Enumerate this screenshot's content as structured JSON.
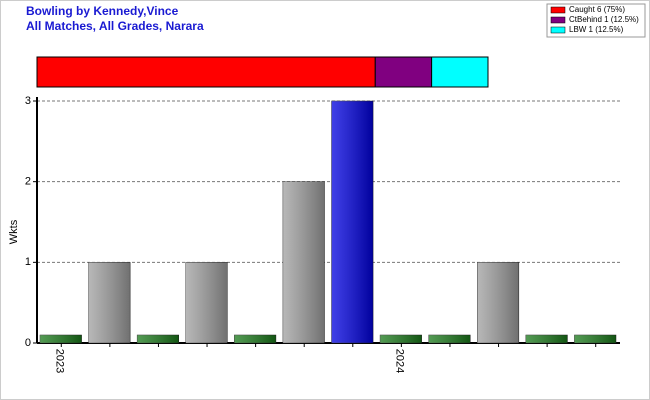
{
  "chart_data": [
    {
      "type": "stacked_bar",
      "title": "Bowling by Kennedy,Vince",
      "subtitle": "All Matches, All Grades, Narara",
      "series": [
        {
          "name": "Caught 6 (75%)",
          "color": "#ff0000",
          "values": [
            6
          ]
        },
        {
          "name": "CtBehind 1 (12.5%)",
          "color": "#800080",
          "values": [
            1
          ]
        },
        {
          "name": "LBW 1 (12.5%)",
          "color": "#00ffff",
          "values": [
            1
          ]
        }
      ]
    },
    {
      "type": "bar",
      "y_label": "Wkts",
      "categories": [
        "2023",
        null,
        null,
        null,
        null,
        null,
        null,
        "2024",
        null,
        null,
        null,
        null
      ],
      "values": [
        0,
        1,
        0,
        1,
        0,
        2,
        3,
        0,
        0,
        1,
        0,
        0
      ],
      "colors": [
        "#1a7a1a",
        "#a0a0a0",
        "#1a7a1a",
        "#a0a0a0",
        "#1a7a1a",
        "#a0a0a0",
        "#0000e0",
        "#1a7a1a",
        "#1a7a1a",
        "#a0a0a0",
        "#1a7a1a",
        "#1a7a1a"
      ],
      "ylim": [
        0,
        3
      ],
      "yticks": [
        0,
        1,
        2,
        3
      ],
      "grid": true
    }
  ]
}
